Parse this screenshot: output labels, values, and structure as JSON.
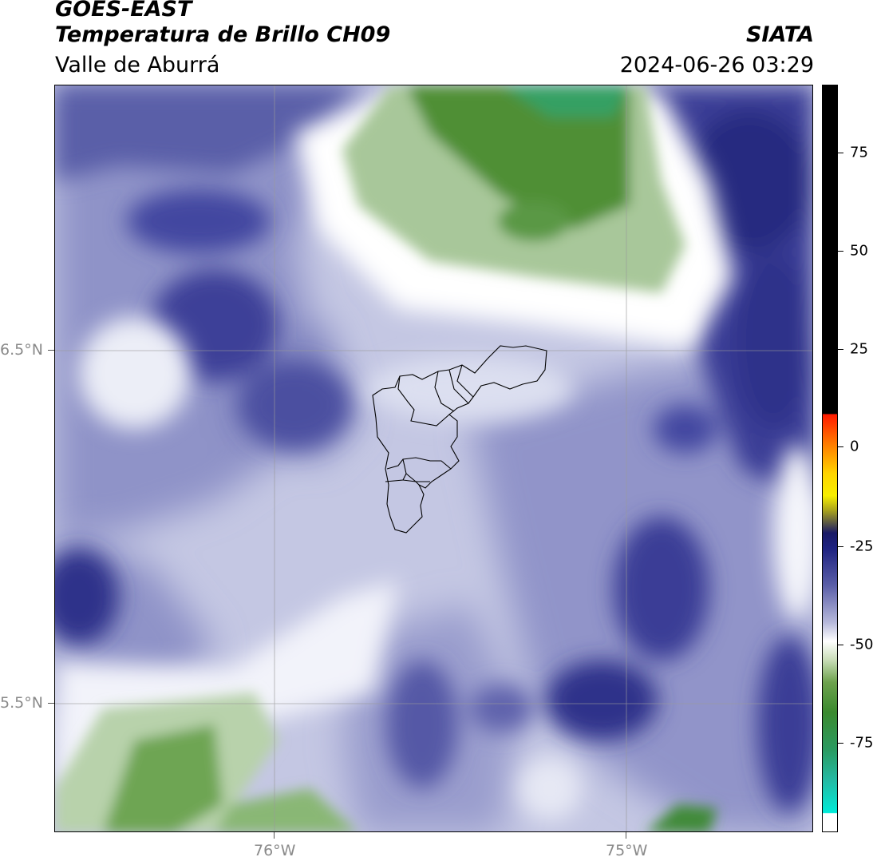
{
  "header": {
    "satellite": "GOES-EAST",
    "product": "Temperatura de Brillo CH09",
    "region": "Valle de Aburrá",
    "institution": "SIATA",
    "datetime": "2024-06-26 03:29"
  },
  "map": {
    "lon_labels": [
      "76°W",
      "75°W"
    ],
    "lat_labels": [
      "6.5°N",
      "5.5°N"
    ],
    "gridlines": true,
    "features": [
      "municipal-boundaries-valle-de-aburra"
    ]
  },
  "colorbar": {
    "tick_labels": [
      "75",
      "50",
      "25",
      "0",
      "-25",
      "-50",
      "-75"
    ],
    "range": [
      -95,
      92
    ],
    "units_shown": false
  },
  "colors": {
    "deep_blue": "#2b2f86",
    "mid_blue": "#6b6fb3",
    "light_lavender": "#c9cce5",
    "white": "#ffffff",
    "light_green": "#a9c79a",
    "green": "#4a8a30",
    "teal": "#2e9f6a",
    "black_warm": "#000000"
  }
}
